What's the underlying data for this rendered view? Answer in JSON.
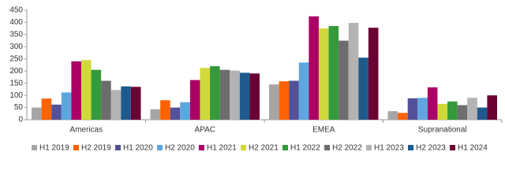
{
  "chart_data": {
    "type": "bar",
    "categories": [
      "Americas",
      "APAC",
      "EMEA",
      "Supranational"
    ],
    "series": [
      {
        "name": "H1 2019",
        "color": "#a6a6a6",
        "values": [
          50,
          43,
          145,
          35
        ]
      },
      {
        "name": "H2 2019",
        "color": "#ff6200",
        "values": [
          87,
          80,
          158,
          28
        ]
      },
      {
        "name": "H1 2020",
        "color": "#525199",
        "values": [
          62,
          50,
          160,
          88
        ]
      },
      {
        "name": "H2 2020",
        "color": "#5fa6e0",
        "values": [
          112,
          72,
          235,
          90
        ]
      },
      {
        "name": "H1 2021",
        "color": "#ab0066",
        "values": [
          240,
          163,
          425,
          133
        ]
      },
      {
        "name": "H2 2021",
        "color": "#d0d93c",
        "values": [
          245,
          213,
          375,
          65
        ]
      },
      {
        "name": "H1 2022",
        "color": "#349a3b",
        "values": [
          205,
          220,
          385,
          75
        ]
      },
      {
        "name": "H2 2022",
        "color": "#6d6d6d",
        "values": [
          160,
          205,
          325,
          60
        ]
      },
      {
        "name": "H1 2023",
        "color": "#b3b3b3",
        "values": [
          122,
          202,
          398,
          90
        ]
      },
      {
        "name": "H2 2023",
        "color": "#1f5a8c",
        "values": [
          137,
          193,
          255,
          50
        ]
      },
      {
        "name": "H1 2024",
        "color": "#6b0033",
        "values": [
          135,
          190,
          378,
          100
        ]
      }
    ],
    "ylim": [
      0,
      450
    ],
    "yticks": [
      0,
      50,
      100,
      150,
      200,
      250,
      300,
      350,
      400,
      450
    ],
    "grid": false
  }
}
